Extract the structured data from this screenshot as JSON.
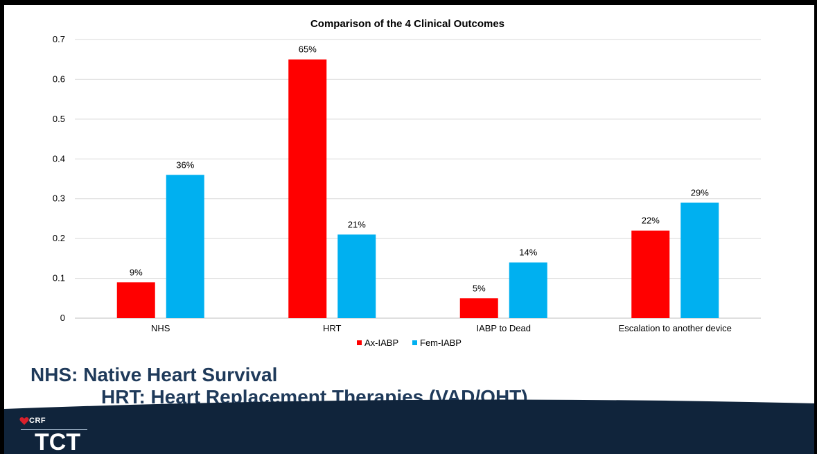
{
  "chart_data": {
    "type": "bar",
    "title": "Comparison of the 4 Clinical Outcomes",
    "categories": [
      "NHS",
      "HRT",
      "IABP to Dead",
      "Escalation to another device"
    ],
    "series": [
      {
        "name": "Ax-IABP",
        "color": "#ff0000",
        "values": [
          0.09,
          0.65,
          0.05,
          0.22
        ],
        "labels": [
          "9%",
          "65%",
          "5%",
          "22%"
        ]
      },
      {
        "name": "Fem-IABP",
        "color": "#00b0f0",
        "values": [
          0.36,
          0.21,
          0.14,
          0.29
        ],
        "labels": [
          "36%",
          "21%",
          "14%",
          "29%"
        ]
      }
    ],
    "ylim": [
      0,
      0.7
    ],
    "yticks": [
      "0",
      "0.1",
      "0.2",
      "0.3",
      "0.4",
      "0.5",
      "0.6",
      "0.7"
    ],
    "grid": true,
    "legend_position": "bottom"
  },
  "definitions": {
    "nhs": "NHS: Native Heart Survival",
    "hrt": "HRT: Heart Replacement Therapies (VAD/OHT)"
  },
  "branding": {
    "crf": "CRF",
    "tct": "TCT",
    "icon": "heart-icon"
  }
}
